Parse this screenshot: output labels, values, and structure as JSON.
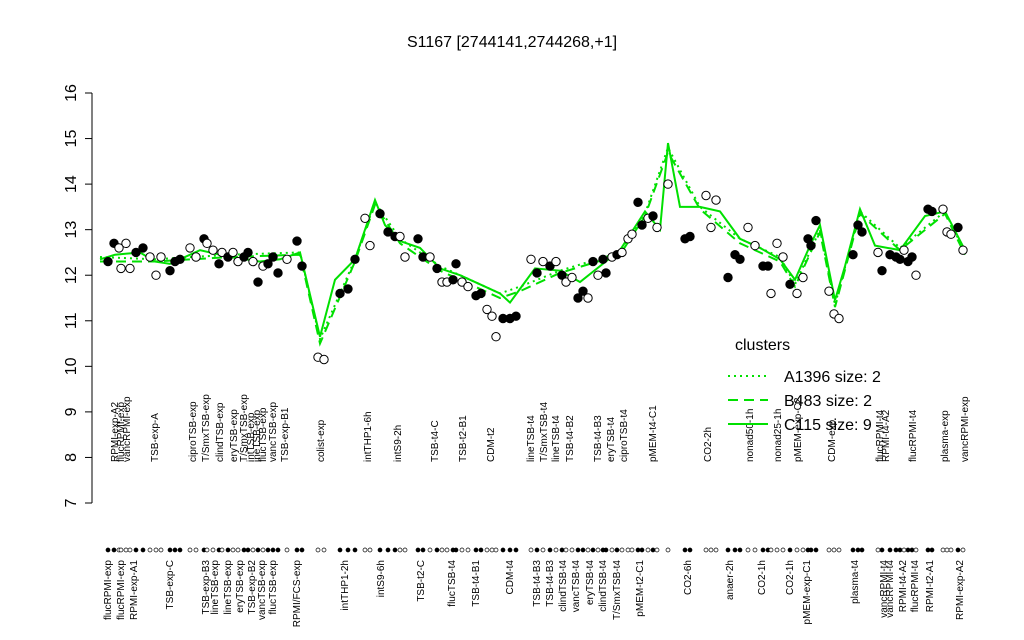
{
  "chart_data": {
    "type": "scatter",
    "title": "S1167 [2744141,2744268,+1]",
    "ylim": [
      7,
      16
    ],
    "yticks": [
      7,
      8,
      9,
      10,
      11,
      12,
      13,
      14,
      15,
      16
    ],
    "xlim": [
      92,
      980
    ],
    "x": [
      108,
      114,
      119,
      121,
      126,
      130,
      136,
      143,
      150,
      156,
      161,
      170,
      175,
      180,
      190,
      196,
      204,
      207,
      213,
      219,
      222,
      228,
      233,
      238,
      244,
      248,
      253,
      258,
      263,
      268,
      273,
      278,
      287,
      297,
      302,
      318,
      324,
      340,
      348,
      355,
      365,
      370,
      380,
      388,
      395,
      400,
      405,
      418,
      423,
      430,
      437,
      442,
      447,
      453,
      456,
      462,
      468,
      476,
      481,
      487,
      492,
      496,
      503,
      510,
      516,
      531,
      537,
      543,
      550,
      556,
      562,
      566,
      572,
      578,
      583,
      588,
      593,
      598,
      603,
      606,
      612,
      617,
      622,
      628,
      632,
      638,
      642,
      648,
      653,
      657,
      668,
      685,
      690,
      706,
      711,
      716,
      728,
      735,
      740,
      748,
      755,
      763,
      768,
      771,
      777,
      783,
      790,
      797,
      803,
      808,
      811,
      816,
      829,
      834,
      839,
      853,
      858,
      862,
      878,
      882,
      890,
      896,
      900,
      904,
      908,
      912,
      916,
      928,
      932,
      943,
      947,
      951,
      958,
      963
    ],
    "values": [
      12.3,
      12.7,
      12.6,
      12.15,
      12.7,
      12.15,
      12.5,
      12.6,
      12.4,
      12.0,
      12.4,
      12.1,
      12.3,
      12.35,
      12.6,
      12.4,
      12.8,
      12.7,
      12.55,
      12.25,
      12.5,
      12.4,
      12.5,
      12.3,
      12.4,
      12.5,
      12.3,
      11.85,
      12.2,
      12.25,
      12.4,
      12.05,
      12.35,
      12.75,
      12.2,
      10.2,
      10.15,
      11.6,
      11.7,
      12.35,
      13.25,
      12.65,
      13.35,
      12.95,
      12.85,
      12.85,
      12.4,
      12.8,
      12.4,
      12.4,
      12.15,
      11.85,
      11.85,
      11.9,
      12.25,
      11.85,
      11.75,
      11.55,
      11.6,
      11.25,
      11.1,
      10.65,
      11.05,
      11.05,
      11.1,
      12.35,
      12.05,
      12.3,
      12.2,
      12.3,
      12.0,
      11.85,
      11.95,
      11.5,
      11.65,
      11.5,
      12.3,
      12.0,
      12.35,
      12.05,
      12.4,
      12.45,
      12.5,
      12.8,
      12.9,
      13.6,
      13.1,
      13.25,
      13.3,
      13.05,
      14.0,
      12.8,
      12.85,
      13.75,
      13.05,
      13.65,
      11.95,
      12.45,
      12.35,
      13.05,
      12.65,
      12.2,
      12.2,
      11.6,
      12.7,
      12.4,
      11.8,
      11.6,
      11.95,
      12.8,
      12.65,
      13.2,
      11.65,
      11.15,
      11.05,
      12.45,
      13.1,
      12.95,
      12.5,
      12.1,
      12.45,
      12.4,
      12.35,
      12.55,
      12.3,
      12.4,
      12.0,
      13.45,
      13.4,
      13.45,
      12.95,
      12.9,
      13.05,
      12.55
    ],
    "point_filled": [
      true,
      true,
      false,
      false,
      false,
      false,
      true,
      true,
      false,
      false,
      false,
      true,
      true,
      true,
      false,
      false,
      true,
      false,
      false,
      true,
      false,
      true,
      false,
      false,
      true,
      true,
      false,
      true,
      false,
      true,
      true,
      true,
      false,
      true,
      true,
      false,
      false,
      true,
      true,
      true,
      false,
      false,
      true,
      true,
      true,
      false,
      false,
      true,
      true,
      false,
      true,
      false,
      false,
      true,
      true,
      false,
      false,
      true,
      true,
      false,
      false,
      false,
      true,
      true,
      true,
      false,
      true,
      false,
      true,
      false,
      true,
      false,
      false,
      true,
      true,
      false,
      true,
      false,
      true,
      true,
      false,
      true,
      false,
      false,
      false,
      true,
      true,
      false,
      true,
      false,
      false,
      true,
      true,
      false,
      false,
      false,
      true,
      true,
      true,
      false,
      false,
      true,
      true,
      false,
      false,
      false,
      true,
      false,
      false,
      true,
      true,
      true,
      false,
      false,
      false,
      true,
      true,
      true,
      false,
      true,
      true,
      true,
      true,
      false,
      true,
      true,
      false,
      true,
      true,
      false,
      false,
      false,
      true,
      false
    ],
    "top_label_x": [
      115,
      121,
      127,
      155,
      193,
      206,
      220,
      234,
      244,
      251,
      257,
      263,
      273,
      285,
      321,
      368,
      398,
      435,
      463,
      491,
      531,
      544,
      556,
      570,
      598,
      611,
      624,
      653,
      708,
      750,
      778,
      798,
      832,
      880,
      886,
      913,
      945,
      965
    ],
    "top_labels": [
      "RPMI-exp-A2",
      "flucRPMI-exp",
      "vancRPMI-exp",
      "TSB-exp-A",
      "ciproTSB-exp",
      "T/SmxTSB-exp",
      "clindTSB-exp",
      "eryTSB-exp",
      "T/SmxTSB-exp",
      "intTSB-exp",
      "ineTSB-exp",
      "flucTSB-exp",
      "vancTSB-exp",
      "TSB-exp-B1",
      "colist-exp",
      "intTHP1-6h",
      "intS9-2h",
      "TSB-t4-C",
      "TSB-t2-B1",
      "CDM-t2",
      "lineTSB-t4",
      "T/SmxTSB-t4",
      "lineTSB-t4",
      "TSB-t4-B2",
      "TSB-t4-B3",
      "eryTSB-t4",
      "ciproTSB-t4",
      "pMEM-t4-C1",
      "CO2-2h",
      "nonad50-1h",
      "nonad25-1h",
      "pMEM-exp-C2",
      "CDM-exp",
      "flucRPMI-t4",
      "RPMI-t4-A2",
      "flucRPMI-t4",
      "plasma-exp",
      "vancRPMI-exp"
    ],
    "bottom_label_x": [
      108,
      121,
      134,
      170,
      206,
      215,
      228,
      240,
      252,
      262,
      273,
      297,
      345,
      381,
      421,
      452,
      476,
      510,
      537,
      550,
      563,
      576,
      590,
      603,
      617,
      640,
      688,
      730,
      762,
      790,
      807,
      855,
      884,
      890,
      903,
      915,
      930,
      960
    ],
    "bottom_labels": [
      "flucRPMI-exp",
      "flucRPMI-exp",
      "RPMI-exp-A1",
      "TSB-exp-C",
      "TSB-exp-B3",
      "lineTSB-exp",
      "lineTSB-exp",
      "eryTSB-exp",
      "TSB-exp-B2",
      "vancTSB-exp",
      "flucTSB-exp",
      "RPMI/FCS-exp",
      "intTHP1-2h",
      "intS9-6h",
      "TSB-t2-C",
      "flucTSB-t4",
      "TSB-t4-B1",
      "CDM-t4",
      "TSB-t4-B3",
      "TSB-t4-B3",
      "clindTSB-t4",
      "vancTSB-t4",
      "eryTSB-t4",
      "clindTSB-t4",
      "T/SmxTSB-t4",
      "pMEM-t2-C1",
      "CO2-6h",
      "anaer-2h",
      "CO2-1h",
      "CO2-1h",
      "pMEM-exp-C1",
      "plasma-t4",
      "vancRPMI-t4",
      "vancRPMI-t4",
      "RPMI-t4-A2",
      "flucRPMI-t4",
      "RPMI-t2-A1",
      "RPMI-exp-A2"
    ],
    "legend_title": "clusters",
    "series": [
      {
        "name": "A1396 size: 2",
        "color": "#00e000",
        "dash": "dotted",
        "x": [
          100,
          155,
          230,
          300,
          320,
          355,
          375,
          400,
          440,
          500,
          520,
          560,
          620,
          645,
          668,
          700,
          740,
          780,
          795,
          820,
          835,
          860,
          900,
          945,
          965
        ],
        "values": [
          12.4,
          12.35,
          12.45,
          12.5,
          10.6,
          12.35,
          13.6,
          12.8,
          12.2,
          11.6,
          11.75,
          12.1,
          12.5,
          13.35,
          14.8,
          13.5,
          12.8,
          12.4,
          11.8,
          13.0,
          11.35,
          13.4,
          12.6,
          13.4,
          12.5
        ]
      },
      {
        "name": "B483 size: 2",
        "color": "#00e000",
        "dash": "dashed",
        "x": [
          100,
          155,
          230,
          300,
          320,
          355,
          375,
          400,
          440,
          500,
          520,
          560,
          620,
          645,
          668,
          700,
          740,
          780,
          795,
          820,
          835,
          860,
          900,
          945,
          965
        ],
        "values": [
          12.3,
          12.3,
          12.4,
          12.45,
          10.5,
          12.3,
          13.55,
          12.7,
          12.1,
          11.5,
          11.65,
          12.05,
          12.45,
          13.3,
          14.7,
          13.45,
          12.7,
          12.3,
          11.75,
          12.95,
          11.3,
          13.35,
          12.55,
          13.35,
          12.45
        ]
      },
      {
        "name": "C115 size: 9",
        "color": "#00e000",
        "dash": "solid",
        "x": [
          100,
          115,
          140,
          155,
          170,
          200,
          230,
          260,
          280,
          300,
          320,
          335,
          355,
          375,
          385,
          400,
          420,
          440,
          460,
          480,
          500,
          510,
          520,
          535,
          560,
          580,
          600,
          620,
          645,
          660,
          668,
          680,
          700,
          720,
          740,
          760,
          780,
          795,
          810,
          820,
          835,
          845,
          860,
          875,
          900,
          925,
          945,
          965
        ],
        "values": [
          12.35,
          12.45,
          12.5,
          12.3,
          12.25,
          12.55,
          12.4,
          12.3,
          12.35,
          12.5,
          10.65,
          11.9,
          12.35,
          13.65,
          13.1,
          12.75,
          12.6,
          12.15,
          12.0,
          11.8,
          11.6,
          11.4,
          11.7,
          12.15,
          12.1,
          11.85,
          12.2,
          12.55,
          13.4,
          13.0,
          14.9,
          13.5,
          13.5,
          13.4,
          12.8,
          12.6,
          12.35,
          11.9,
          12.65,
          13.1,
          11.45,
          12.2,
          13.45,
          12.65,
          12.55,
          13.3,
          13.4,
          12.55
        ]
      }
    ]
  }
}
